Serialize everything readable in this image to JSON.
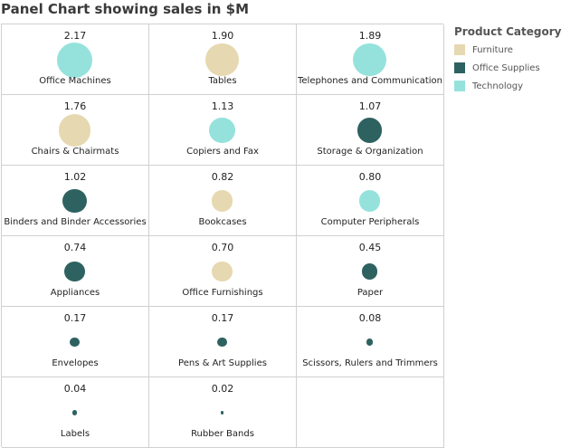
{
  "chart_data": {
    "type": "bubble-panel",
    "title": "Panel Chart showing sales in $M",
    "legend_title": "Product Category",
    "legend_position": "top-right",
    "categories": [
      {
        "name": "Furniture",
        "color": "#e6d8b0"
      },
      {
        "name": "Office Supplies",
        "color": "#2e6261"
      },
      {
        "name": "Technology",
        "color": "#95e2dc"
      }
    ],
    "points": [
      {
        "label": "Office Machines",
        "value": "2.17",
        "category": "Technology"
      },
      {
        "label": "Tables",
        "value": "1.90",
        "category": "Furniture"
      },
      {
        "label": "Telephones and Communication",
        "value": "1.89",
        "category": "Technology"
      },
      {
        "label": "Chairs & Chairmats",
        "value": "1.76",
        "category": "Furniture"
      },
      {
        "label": "Copiers and Fax",
        "value": "1.13",
        "category": "Technology"
      },
      {
        "label": "Storage & Organization",
        "value": "1.07",
        "category": "Office Supplies"
      },
      {
        "label": "Binders and Binder Accessories",
        "value": "1.02",
        "category": "Office Supplies"
      },
      {
        "label": "Bookcases",
        "value": "0.82",
        "category": "Furniture"
      },
      {
        "label": "Computer Peripherals",
        "value": "0.80",
        "category": "Technology"
      },
      {
        "label": "Appliances",
        "value": "0.74",
        "category": "Office Supplies"
      },
      {
        "label": "Office Furnishings",
        "value": "0.70",
        "category": "Furniture"
      },
      {
        "label": "Paper",
        "value": "0.45",
        "category": "Office Supplies"
      },
      {
        "label": "Envelopes",
        "value": "0.17",
        "category": "Office Supplies"
      },
      {
        "label": "Pens & Art Supplies",
        "value": "0.17",
        "category": "Office Supplies"
      },
      {
        "label": "Scissors, Rulers and Trimmers",
        "value": "0.08",
        "category": "Office Supplies"
      },
      {
        "label": "Labels",
        "value": "0.04",
        "category": "Office Supplies"
      },
      {
        "label": "Rubber Bands",
        "value": "0.02",
        "category": "Office Supplies"
      }
    ]
  }
}
